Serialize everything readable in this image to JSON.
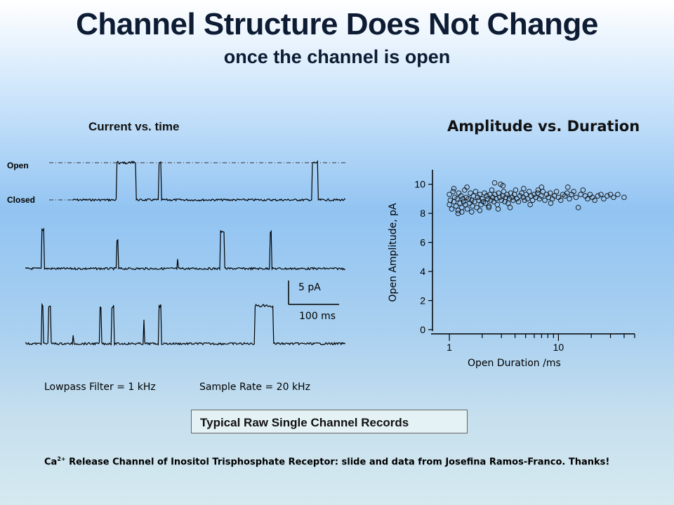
{
  "slide": {
    "title": "Channel Structure Does Not Change",
    "subtitle": "once the channel is open",
    "trace_title": "Current vs. time",
    "scatter_title": "Amplitude vs. Duration",
    "open_label": "Open",
    "closed_label": "Closed",
    "scale_bar_current": "5 pA",
    "scale_bar_time": "100 ms",
    "filter_note": "Lowpass Filter = 1 kHz",
    "sample_rate_note": "Sample Rate = 20 kHz",
    "caption": "Typical Raw Single Channel Records",
    "credit_prefix": "Ca",
    "credit_superscript": "2+",
    "credit_text": " Release Channel of Inositol Trisphosphate Receptor: slide and data from Josefina Ramos-Franco. Thanks!"
  },
  "chart_data": {
    "type": "scatter",
    "title": "Amplitude vs. Duration",
    "xlabel": "Open Duration /ms",
    "ylabel": "Open Amplitude, pA",
    "x_scale": "log",
    "xlim": [
      0.7,
      50
    ],
    "ylim": [
      0,
      11
    ],
    "x_ticks": [
      "1",
      "10"
    ],
    "y_ticks": [
      "0",
      "2",
      "4",
      "6",
      "8",
      "10"
    ],
    "marker": "open-circle",
    "series": [
      {
        "points": [
          [
            1.0,
            8.6
          ],
          [
            1.0,
            9.3
          ],
          [
            1.02,
            8.9
          ],
          [
            1.05,
            8.3
          ],
          [
            1.08,
            9.5
          ],
          [
            1.1,
            8.8
          ],
          [
            1.12,
            9.1
          ],
          [
            1.15,
            8.5
          ],
          [
            1.18,
            9.0
          ],
          [
            1.2,
            8.2
          ],
          [
            1.22,
            9.4
          ],
          [
            1.25,
            8.7
          ],
          [
            1.28,
            9.2
          ],
          [
            1.3,
            8.4
          ],
          [
            1.33,
            9.0
          ],
          [
            1.35,
            8.8
          ],
          [
            1.38,
            9.6
          ],
          [
            1.4,
            8.6
          ],
          [
            1.43,
            9.1
          ],
          [
            1.46,
            8.3
          ],
          [
            1.5,
            9.0
          ],
          [
            1.53,
            8.7
          ],
          [
            1.56,
            9.4
          ],
          [
            1.6,
            8.9
          ],
          [
            1.63,
            8.5
          ],
          [
            1.66,
            9.2
          ],
          [
            1.7,
            8.8
          ],
          [
            1.74,
            9.5
          ],
          [
            1.78,
            8.4
          ],
          [
            1.82,
            9.1
          ],
          [
            1.86,
            8.9
          ],
          [
            1.9,
            9.3
          ],
          [
            1.95,
            8.6
          ],
          [
            2.0,
            9.0
          ],
          [
            2.05,
            8.8
          ],
          [
            2.1,
            9.4
          ],
          [
            2.15,
            8.7
          ],
          [
            2.2,
            9.2
          ],
          [
            2.25,
            9.0
          ],
          [
            2.3,
            8.5
          ],
          [
            2.35,
            9.3
          ],
          [
            2.4,
            8.9
          ],
          [
            2.45,
            9.6
          ],
          [
            2.5,
            9.1
          ],
          [
            2.56,
            8.8
          ],
          [
            2.62,
            9.3
          ],
          [
            2.68,
            9.0
          ],
          [
            2.75,
            8.6
          ],
          [
            2.82,
            9.4
          ],
          [
            2.9,
            9.1
          ],
          [
            2.95,
            10.0
          ],
          [
            3.0,
            8.9
          ],
          [
            3.08,
            9.2
          ],
          [
            3.15,
            9.5
          ],
          [
            3.22,
            8.8
          ],
          [
            3.3,
            9.1
          ],
          [
            3.38,
            9.3
          ],
          [
            3.46,
            8.7
          ],
          [
            3.55,
            9.0
          ],
          [
            3.65,
            9.4
          ],
          [
            3.75,
            9.1
          ],
          [
            3.85,
            8.9
          ],
          [
            3.95,
            9.3
          ],
          [
            4.05,
            9.6
          ],
          [
            4.15,
            9.0
          ],
          [
            4.3,
            8.8
          ],
          [
            4.45,
            9.2
          ],
          [
            4.6,
            9.4
          ],
          [
            4.75,
            9.1
          ],
          [
            4.9,
            8.9
          ],
          [
            5.05,
            9.3
          ],
          [
            5.2,
            9.0
          ],
          [
            5.4,
            9.5
          ],
          [
            5.6,
            9.2
          ],
          [
            5.8,
            8.9
          ],
          [
            6.0,
            9.3
          ],
          [
            6.2,
            9.1
          ],
          [
            6.45,
            9.4
          ],
          [
            6.7,
            9.0
          ],
          [
            6.95,
            9.2
          ],
          [
            7.2,
            9.5
          ],
          [
            7.5,
            8.9
          ],
          [
            7.8,
            9.3
          ],
          [
            8.1,
            9.1
          ],
          [
            8.4,
            9.4
          ],
          [
            8.8,
            9.0
          ],
          [
            9.2,
            9.2
          ],
          [
            9.6,
            9.5
          ],
          [
            10.0,
            9.1
          ],
          [
            10.5,
            8.9
          ],
          [
            11.0,
            9.3
          ],
          [
            11.5,
            9.2
          ],
          [
            12.0,
            9.4
          ],
          [
            12.6,
            9.0
          ],
          [
            13.2,
            9.3
          ],
          [
            13.8,
            9.5
          ],
          [
            14.5,
            9.1
          ],
          [
            15.2,
            8.4
          ],
          [
            16.0,
            9.3
          ],
          [
            16.8,
            9.6
          ],
          [
            17.6,
            9.2
          ],
          [
            18.5,
            9.0
          ],
          [
            19.5,
            9.3
          ],
          [
            20.5,
            9.1
          ],
          [
            21.5,
            8.9
          ],
          [
            23.0,
            9.2
          ],
          [
            24.5,
            9.3
          ],
          [
            26.0,
            9.0
          ],
          [
            28.0,
            9.2
          ],
          [
            30.0,
            9.3
          ],
          [
            32.0,
            9.1
          ],
          [
            35.0,
            9.3
          ],
          [
            40.0,
            9.1
          ],
          [
            1.1,
            9.7
          ],
          [
            1.45,
            9.8
          ],
          [
            2.6,
            10.1
          ],
          [
            3.1,
            9.9
          ],
          [
            4.8,
            9.7
          ],
          [
            7.0,
            9.8
          ],
          [
            12.2,
            9.8
          ],
          [
            1.3,
            8.1
          ],
          [
            1.9,
            8.2
          ],
          [
            2.8,
            8.3
          ],
          [
            3.6,
            8.4
          ],
          [
            5.5,
            8.6
          ],
          [
            8.5,
            8.7
          ],
          [
            1.2,
            8.0
          ],
          [
            1.6,
            8.1
          ],
          [
            2.3,
            8.4
          ],
          [
            6.5,
            9.6
          ]
        ]
      }
    ]
  }
}
